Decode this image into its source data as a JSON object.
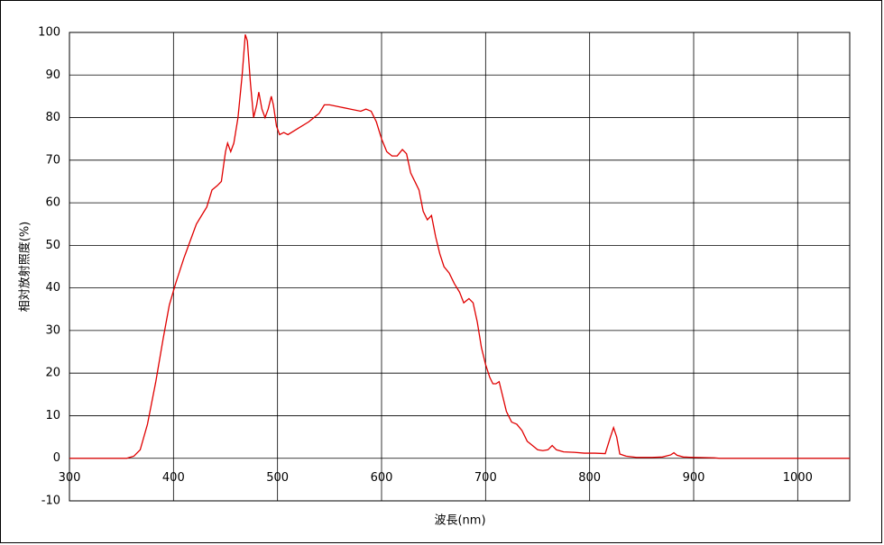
{
  "chart_data": {
    "type": "line",
    "xlabel": "波長(nm)",
    "ylabel": "相対放射照度(%)",
    "x": [
      300,
      355,
      362,
      368,
      375,
      383,
      390,
      396,
      402,
      410,
      416,
      422,
      427,
      432,
      437,
      442,
      446,
      450,
      452,
      455,
      458,
      462,
      466,
      469,
      471,
      474,
      477,
      480,
      482,
      485,
      488,
      491,
      494,
      496,
      499,
      502,
      506,
      510,
      520,
      530,
      540,
      545,
      550,
      560,
      570,
      580,
      585,
      590,
      595,
      600,
      605,
      610,
      615,
      620,
      624,
      628,
      632,
      636,
      640,
      644,
      648,
      652,
      656,
      660,
      665,
      670,
      675,
      679,
      684,
      688,
      692,
      696,
      700,
      704,
      707,
      710,
      713,
      716,
      720,
      725,
      730,
      735,
      740,
      745,
      750,
      755,
      760,
      764,
      768,
      775,
      785,
      795,
      805,
      815,
      820,
      823,
      826,
      829,
      835,
      845,
      860,
      870,
      878,
      881,
      884,
      890,
      900,
      920,
      925,
      1050
    ],
    "values": [
      0,
      0,
      0.5,
      2,
      8,
      18,
      28,
      36,
      41,
      47,
      51,
      55,
      57,
      59,
      63,
      64,
      65,
      72,
      74,
      72,
      74,
      80,
      90,
      99.5,
      98,
      88,
      80,
      83,
      86,
      82,
      80,
      82,
      85,
      83,
      78,
      76,
      76.5,
      76,
      77.5,
      79,
      81,
      83,
      83,
      82.5,
      82,
      81.5,
      82,
      81.5,
      79,
      75,
      72,
      71,
      71,
      72.5,
      71.5,
      67,
      65,
      63,
      58,
      56,
      57,
      52,
      48,
      45,
      43.5,
      41,
      39,
      36.5,
      37.5,
      36.5,
      32,
      26,
      22,
      19,
      17.5,
      17.5,
      18,
      15,
      11,
      8.5,
      8,
      6.5,
      4,
      3,
      2,
      1.8,
      2,
      3,
      2,
      1.5,
      1.4,
      1.2,
      1.2,
      1.1,
      5,
      7.2,
      5,
      1,
      0.5,
      0.2,
      0.2,
      0.3,
      0.8,
      1.3,
      0.7,
      0.3,
      0.2,
      0.1,
      0,
      0
    ],
    "color": "#e00000",
    "xlim": [
      300,
      1050
    ],
    "ylim": [
      -10,
      100
    ],
    "xticks": [
      300,
      400,
      500,
      600,
      700,
      800,
      900,
      1000
    ],
    "yticks": [
      -10,
      0,
      10,
      20,
      30,
      40,
      50,
      60,
      70,
      80,
      90,
      100
    ],
    "grid": true
  }
}
